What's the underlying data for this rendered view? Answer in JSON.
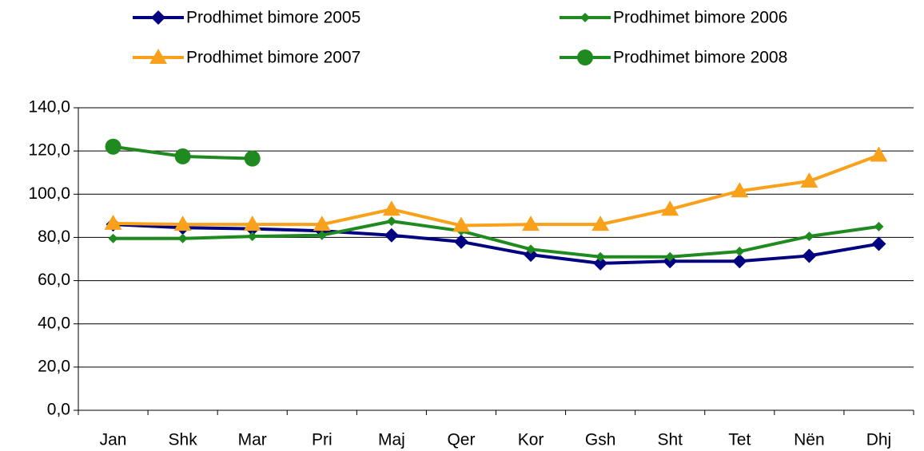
{
  "chart_data": {
    "type": "line",
    "categories": [
      "Jan",
      "Shk",
      "Mar",
      "Pri",
      "Maj",
      "Qer",
      "Kor",
      "Gsh",
      "Sht",
      "Tet",
      "Nën",
      "Dhj"
    ],
    "series": [
      {
        "name": "Prodhimet bimore 2005",
        "color": "#000080",
        "marker": "diamond",
        "values": [
          86,
          84.5,
          84,
          83,
          81,
          78,
          72,
          68,
          69,
          69,
          71.5,
          77
        ]
      },
      {
        "name": "Prodhimet bimore 2006",
        "color": "#1f8a1f",
        "marker": "small-diamond",
        "values": [
          79.5,
          79.5,
          80.5,
          81,
          87.5,
          83,
          74.5,
          71,
          71,
          73.5,
          80.5,
          85
        ]
      },
      {
        "name": "Prodhimet bimore 2007",
        "color": "#f9a11b",
        "marker": "triangle",
        "values": [
          86.5,
          86,
          86,
          86,
          93,
          85.5,
          86,
          86,
          93,
          101.5,
          106,
          118
        ]
      },
      {
        "name": "Prodhimet bimore 2008",
        "color": "#1f8a1f",
        "marker": "circle",
        "values": [
          122,
          117.5,
          116.5,
          null,
          null,
          null,
          null,
          null,
          null,
          null,
          null,
          null
        ]
      }
    ],
    "ylim": [
      0,
      140
    ],
    "yticks": [
      {
        "value": 0,
        "label": "0,0"
      },
      {
        "value": 20,
        "label": "20,0"
      },
      {
        "value": 40,
        "label": "40,0"
      },
      {
        "value": 60,
        "label": "60,0"
      },
      {
        "value": 80,
        "label": "80,0"
      },
      {
        "value": 100,
        "label": "100,0"
      },
      {
        "value": 120,
        "label": "120,0"
      },
      {
        "value": 140,
        "label": "140,0"
      }
    ],
    "grid": true
  }
}
